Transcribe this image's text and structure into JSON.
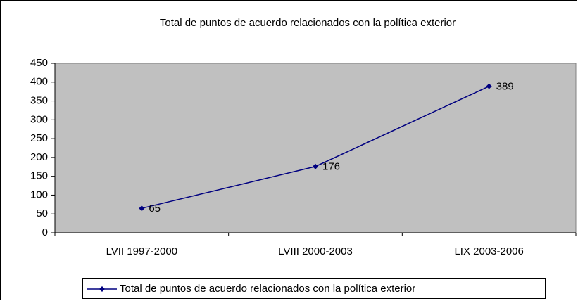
{
  "chart_data": {
    "type": "line",
    "title": "Total de puntos de acuerdo relacionados con la política exterior",
    "categories": [
      "LVII 1997-2000",
      "LVIII 2000-2003",
      "LIX 2003-2006"
    ],
    "series": [
      {
        "name": "Total de puntos de acuerdo relacionados con la política exterior",
        "color": "#000080",
        "values": [
          65,
          176,
          389
        ]
      }
    ],
    "ylim": [
      0,
      450
    ],
    "yticks": [
      0,
      50,
      100,
      150,
      200,
      250,
      300,
      350,
      400,
      450
    ],
    "grid": false,
    "legend": "bottom",
    "plot_background": "#c0c0c0"
  }
}
